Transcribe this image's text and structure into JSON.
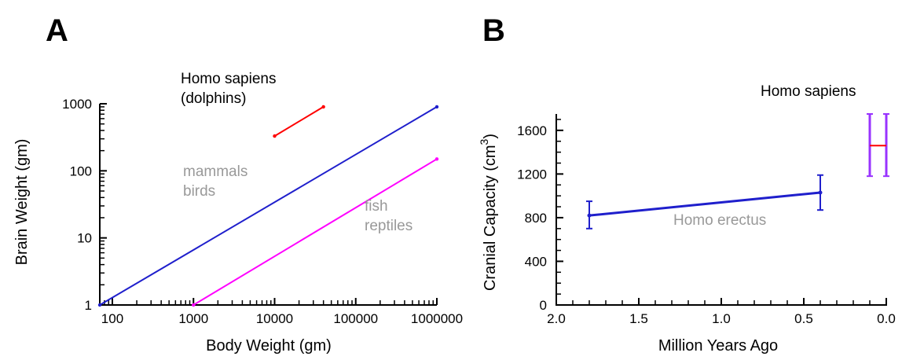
{
  "chart_data": [
    {
      "panel": "A",
      "type": "line",
      "xlabel": "Body Weight (gm)",
      "ylabel": "Brain Weight (gm)",
      "xscale": "log",
      "yscale": "log",
      "xlim": [
        70,
        1000000
      ],
      "ylim": [
        1,
        1000
      ],
      "xticks": [
        100,
        1000,
        10000,
        100000,
        1000000
      ],
      "xtick_labels": [
        "100",
        "1000",
        "10000",
        "100000",
        "1000000"
      ],
      "yticks": [
        1,
        10,
        100,
        1000
      ],
      "ytick_labels": [
        "1",
        "10",
        "100",
        "1000"
      ],
      "grid": false,
      "series": [
        {
          "color": "#ff0000",
          "x": [
            10000,
            40000
          ],
          "y": [
            330,
            900
          ]
        },
        {
          "color": "#1f1fcc",
          "x": [
            70,
            1000000
          ],
          "y": [
            1,
            900
          ]
        },
        {
          "color": "#ff00ff",
          "x": [
            1000,
            1000000
          ],
          "y": [
            1,
            150
          ]
        }
      ],
      "annotations": [
        {
          "lines": [
            "Homo sapiens",
            "(dolphins)"
          ],
          "color": "#000000"
        },
        {
          "lines": [
            "mammals",
            "birds"
          ],
          "color": "#999999"
        },
        {
          "lines": [
            "fish",
            "reptiles"
          ],
          "color": "#999999"
        }
      ]
    },
    {
      "panel": "B",
      "type": "line",
      "xlabel": "Million Years Ago",
      "ylabel": "Cranial Capacity (cm",
      "ylabel_superscript": "3",
      "ylabel_close": ")",
      "xlim": [
        2.0,
        0.0
      ],
      "ylim": [
        0,
        1750
      ],
      "xticks": [
        2.0,
        1.5,
        1.0,
        0.5,
        0.0
      ],
      "xtick_labels": [
        "2.0",
        "1.5",
        "1.0",
        "0.5",
        "0.0"
      ],
      "yticks": [
        0,
        400,
        800,
        1200,
        1600
      ],
      "ytick_labels": [
        "0",
        "400",
        "800",
        "1200",
        "1600"
      ],
      "grid": false,
      "series": [
        {
          "color": "#1f1fcc",
          "x": [
            1.8,
            0.4
          ],
          "y": [
            820,
            1030
          ],
          "yerr_low": [
            700,
            870
          ],
          "yerr_high": [
            950,
            1190
          ]
        }
      ],
      "ranges": [
        {
          "color": "#9933ff",
          "x": [
            0.1,
            0.0
          ],
          "y": [
            1180,
            1750
          ],
          "center": 1460,
          "center_color": "#ff0000"
        }
      ],
      "annotations": [
        {
          "lines": [
            "Homo erectus"
          ],
          "color": "#999999"
        },
        {
          "lines": [
            "Homo sapiens"
          ],
          "color": "#000000"
        }
      ]
    }
  ]
}
